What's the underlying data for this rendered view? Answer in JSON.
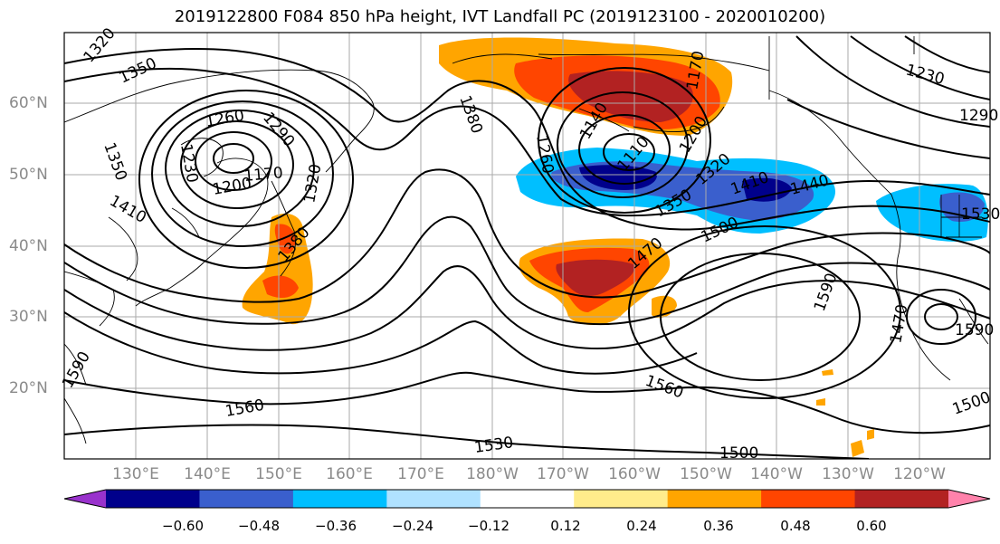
{
  "title": "2019122800 F084 850 hPa height, IVT Landfall PC (2019123100 - 2020010200)",
  "lat_labels": [
    "60°N",
    "50°N",
    "40°N",
    "30°N",
    "20°N"
  ],
  "lon_labels": [
    "130°E",
    "140°E",
    "150°E",
    "160°E",
    "170°E",
    "180°W",
    "170°W",
    "160°W",
    "150°W",
    "140°W",
    "130°W",
    "120°W"
  ],
  "contour_labels": [
    "1320",
    "1350",
    "1260",
    "1290",
    "1230",
    "1350",
    "1200",
    "1170",
    "1320",
    "1410",
    "1380",
    "1380",
    "1260",
    "1140",
    "1110",
    "1170",
    "1200",
    "1320",
    "1350",
    "1410",
    "1440",
    "1500",
    "1470",
    "1230",
    "1290",
    "1560",
    "1530",
    "1590",
    "1560",
    "1500",
    "1590",
    "1470",
    "1500",
    "1530",
    "1590"
  ],
  "colorbar": {
    "colors": [
      "#9932cc",
      "#00008b",
      "#3a5fcd",
      "#00bfff",
      "#b0e2ff",
      "#ffffff",
      "#ffec8b",
      "#ffa500",
      "#ff4500",
      "#b22222",
      "#ff82ab"
    ],
    "tick_labels": [
      "−0.60",
      "−0.48",
      "−0.36",
      "−0.24",
      "−0.12",
      "0.12",
      "0.24",
      "0.36",
      "0.48",
      "0.60"
    ]
  }
}
